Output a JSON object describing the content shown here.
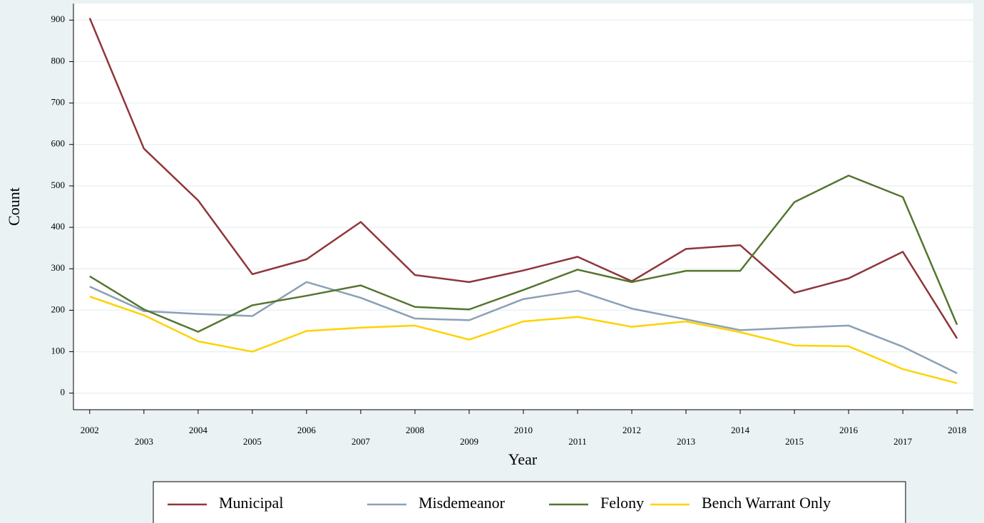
{
  "chart_data": {
    "type": "line",
    "x_label": "Year",
    "y_label": "Count",
    "x": [
      2002,
      2003,
      2004,
      2005,
      2006,
      2007,
      2008,
      2009,
      2010,
      2011,
      2012,
      2013,
      2014,
      2015,
      2016,
      2017,
      2018
    ],
    "series": [
      {
        "name": "Municipal",
        "color": "#90353b",
        "values": [
          905,
          590,
          465,
          287,
          323,
          413,
          285,
          268,
          296,
          329,
          270,
          348,
          357,
          242,
          277,
          341,
          132
        ]
      },
      {
        "name": "Misdemeanor",
        "color": "#8ba0b6",
        "values": [
          257,
          198,
          191,
          186,
          268,
          230,
          180,
          176,
          227,
          247,
          204,
          178,
          152,
          158,
          163,
          112,
          48
        ]
      },
      {
        "name": "Felony",
        "color": "#55752f",
        "values": [
          282,
          202,
          148,
          212,
          235,
          260,
          208,
          202,
          249,
          298,
          268,
          295,
          295,
          461,
          525,
          473,
          165
        ]
      },
      {
        "name": "Bench Warrant Only",
        "color": "#ffd200",
        "values": [
          233,
          188,
          125,
          100,
          150,
          158,
          163,
          129,
          173,
          184,
          160,
          173,
          147,
          115,
          113,
          58,
          24
        ]
      }
    ],
    "xlim": [
      2001.7,
      2018.3
    ],
    "xticks": [
      2002,
      2003,
      2004,
      2005,
      2006,
      2007,
      2008,
      2009,
      2010,
      2011,
      2012,
      2013,
      2014,
      2015,
      2016,
      2017,
      2018
    ],
    "ylim": [
      -40,
      940
    ],
    "yticks": [
      0,
      100,
      200,
      300,
      400,
      500,
      600,
      700,
      800,
      900
    ],
    "grid": true
  }
}
